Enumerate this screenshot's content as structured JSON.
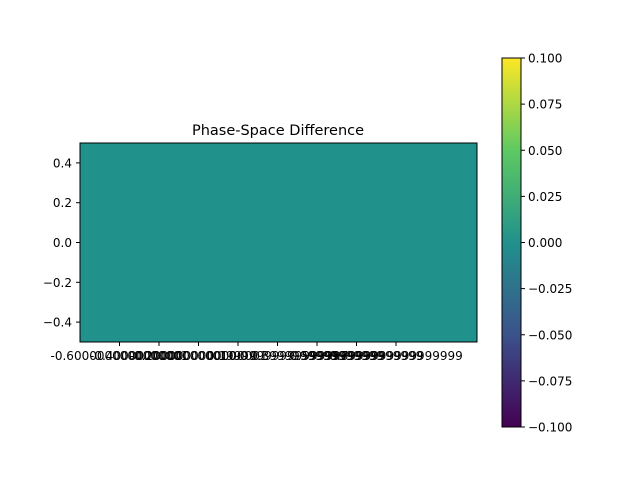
{
  "chart_data": {
    "type": "heatmap",
    "title": "Phase-Space Difference",
    "xlabel": "",
    "ylabel": "",
    "x_tick_labels": [
      "-0.6000000000000001",
      "-0.4000000000000001",
      "-0.2000000000000001",
      "0.0",
      "0.19999999999999996",
      "0.3999999999999999",
      "0.5999999999999999",
      "0.7999999999999999"
    ],
    "y_ticks": [
      0.4,
      0.2,
      0.0,
      -0.2,
      -0.4
    ],
    "y_tick_labels": [
      "0.4",
      "0.2",
      "0.0",
      "−0.2",
      "−0.4"
    ],
    "ylim": [
      -0.5,
      0.5
    ],
    "values": [
      [
        0.0
      ]
    ],
    "fill_value": 0.0,
    "colormap": "viridis",
    "colorbar": {
      "range": [
        -0.1,
        0.1
      ],
      "ticks": [
        0.1,
        0.075,
        0.05,
        0.025,
        0.0,
        -0.025,
        -0.05,
        -0.075,
        -0.1
      ],
      "tick_labels": [
        "0.100",
        "0.075",
        "0.050",
        "0.025",
        "0.000",
        "−0.025",
        "−0.050",
        "−0.075",
        "−0.100"
      ]
    },
    "grid": false,
    "colors": {
      "uniform_fill": "#21918c",
      "colorbar_stops": [
        "#440154",
        "#3b528b",
        "#21918c",
        "#5ec962",
        "#fde725"
      ]
    }
  }
}
